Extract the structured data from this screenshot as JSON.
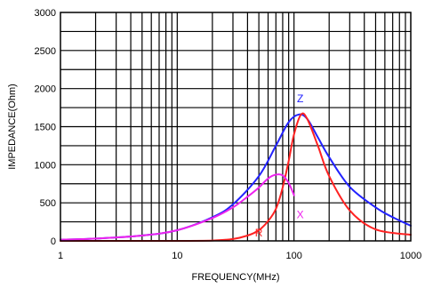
{
  "chart_data": {
    "type": "line",
    "title": "",
    "xlabel": "FREQUENCY(MHz)",
    "ylabel": "IMPEDANCE(Ohm)",
    "x_scale": "log",
    "xlim": [
      1,
      1000
    ],
    "ylim": [
      0,
      3000
    ],
    "grid": true,
    "x_ticks": [
      {
        "value": 1,
        "label": "1"
      },
      {
        "value": 10,
        "label": "10"
      },
      {
        "value": 100,
        "label": "100"
      },
      {
        "value": 1000,
        "label": "1000"
      }
    ],
    "y_ticks": [
      {
        "value": 0,
        "label": "0"
      },
      {
        "value": 500,
        "label": "500"
      },
      {
        "value": 1000,
        "label": "1000"
      },
      {
        "value": 1500,
        "label": "1500"
      },
      {
        "value": 2000,
        "label": "2000"
      },
      {
        "value": 2500,
        "label": "2500"
      },
      {
        "value": 3000,
        "label": "3000"
      }
    ],
    "series": [
      {
        "name": "Z",
        "color": "#2222ff",
        "x": [
          1,
          2,
          5,
          10,
          20,
          30,
          50,
          70,
          90,
          110,
          130,
          160,
          200,
          300,
          500,
          700,
          1000
        ],
        "y": [
          15,
          30,
          70,
          140,
          310,
          480,
          850,
          1250,
          1560,
          1660,
          1600,
          1360,
          1100,
          710,
          440,
          310,
          200
        ]
      },
      {
        "name": "R",
        "color": "#ff2222",
        "x": [
          1,
          10,
          20,
          30,
          40,
          50,
          60,
          70,
          80,
          90,
          100,
          115,
          130,
          160,
          200,
          300,
          500,
          1000
        ],
        "y": [
          0,
          0,
          5,
          25,
          70,
          140,
          260,
          420,
          700,
          1050,
          1400,
          1660,
          1600,
          1250,
          850,
          400,
          150,
          80
        ]
      },
      {
        "name": "X",
        "color": "#ee22ee",
        "x": [
          1,
          2,
          5,
          10,
          20,
          30,
          40,
          50,
          60,
          70,
          80,
          90,
          100
        ],
        "y": [
          15,
          30,
          70,
          140,
          300,
          440,
          580,
          700,
          820,
          870,
          860,
          760,
          600
        ]
      }
    ]
  }
}
